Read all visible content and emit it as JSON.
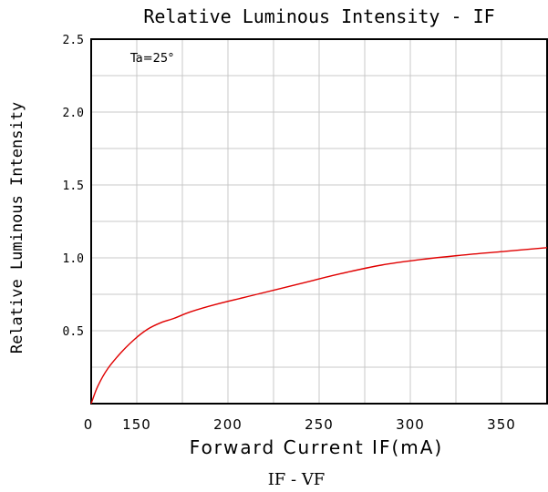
{
  "chart_data": {
    "type": "line",
    "title": "Relative Luminous Intensity - IF",
    "xlabel": "Forward Current IF(mA)",
    "ylabel": "Relative Luminous Intensity",
    "annotation": "Ta=25°",
    "caption": "IF - VF",
    "x_ticks": [
      "0",
      "150",
      "200",
      "250",
      "300",
      "350"
    ],
    "y_ticks": [
      "2.5",
      "2.0",
      "1.5",
      "1.0",
      "0.5"
    ],
    "xlim": [
      100,
      375
    ],
    "ylim": [
      0,
      2.5
    ],
    "grid": true,
    "series": [
      {
        "color": "#e00000",
        "x": [
          100,
          104,
          110,
          118,
          126,
          134,
          142,
          150,
          160,
          175,
          200,
          225,
          250,
          275,
          300,
          325,
          350,
          375
        ],
        "y": [
          0,
          0.12,
          0.24,
          0.35,
          0.44,
          0.51,
          0.555,
          0.585,
          0.63,
          0.68,
          0.75,
          0.82,
          0.89,
          0.95,
          0.99,
          1.02,
          1.045,
          1.07
        ]
      }
    ]
  }
}
